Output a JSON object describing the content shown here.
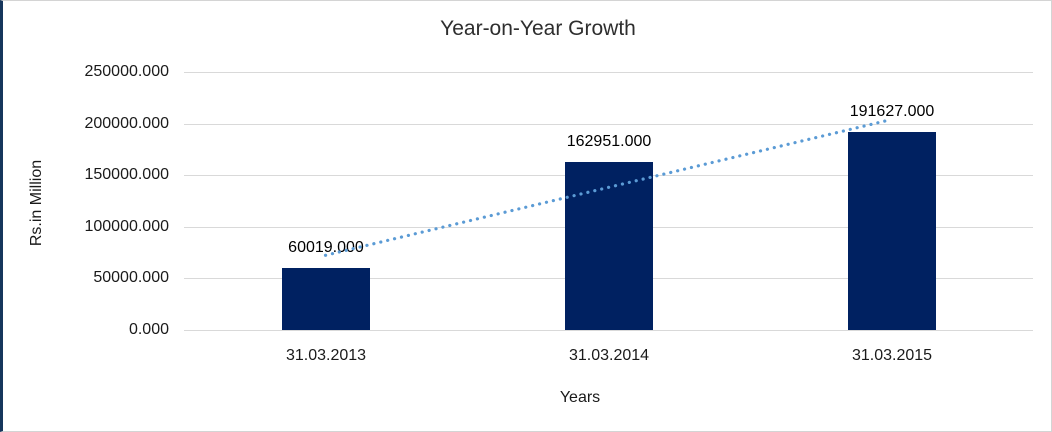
{
  "frame": {
    "background": "#ffffff",
    "border_color": "#d4d4d4",
    "left_accent_border_color": "#16365c"
  },
  "chart_data": {
    "type": "bar",
    "title": "Year-on-Year Growth",
    "xlabel": "Years",
    "ylabel": "Rs.in Million",
    "categories": [
      "31.03.2013",
      "31.03.2014",
      "31.03.2015"
    ],
    "values": [
      60019,
      162951,
      191627
    ],
    "data_labels": [
      "60019.000",
      "162951.000",
      "191627.000"
    ],
    "ylim": [
      0,
      250000
    ],
    "ytick_step": 50000,
    "ytick_values": [
      0,
      50000,
      100000,
      150000,
      200000,
      250000
    ],
    "ytick_labels": [
      "0.000",
      "50000.000",
      "100000.000",
      "150000.000",
      "200000.000",
      "250000.000"
    ],
    "grid": true,
    "legend_position": "none",
    "bar_color": "#002161",
    "gridline_color": "#d9d9d9",
    "trendline": {
      "type": "linear",
      "line_style": "dotted",
      "color": "#5b9bd5",
      "start_value": 72395,
      "end_value": 204003
    }
  }
}
